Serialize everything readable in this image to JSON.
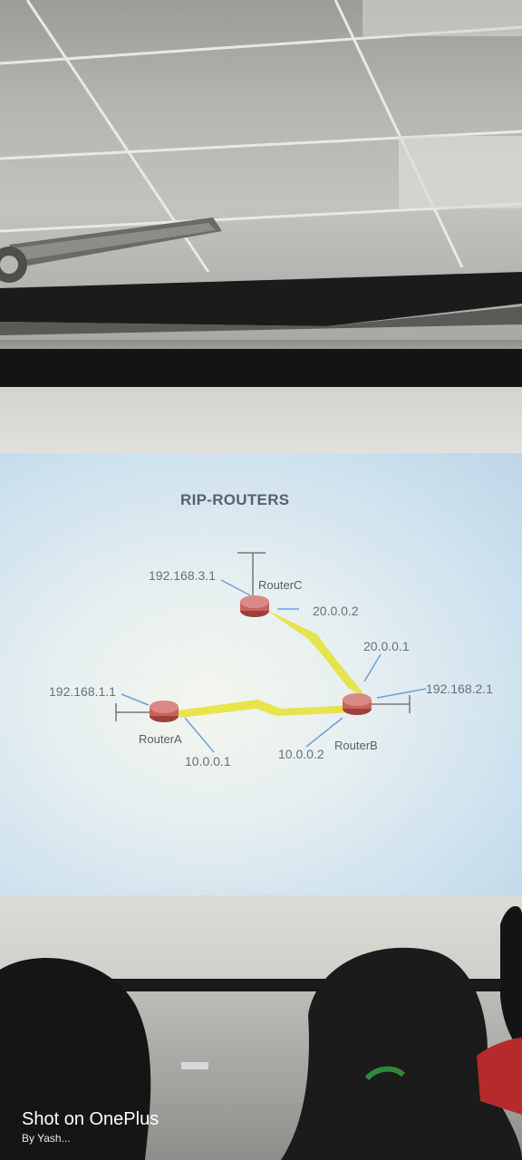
{
  "slide": {
    "title": "RIP-ROUTERS",
    "routers": {
      "router_a": "RouterA",
      "router_b": "RouterB",
      "router_c": "RouterC"
    },
    "ips": {
      "a_lan": "192.168.1.1",
      "b_lan": "192.168.2.1",
      "c_lan": "192.168.3.1",
      "c_serial": "20.0.0.2",
      "b_serial_c": "20.0.0.1",
      "a_serial": "10.0.0.1",
      "b_serial_a": "10.0.0.2"
    }
  },
  "watermark": {
    "line1": "Shot on OnePlus",
    "line2": "By Yash..."
  },
  "colors": {
    "router": "#c9615d",
    "link": "#e6e23a",
    "arrow": "#6fa0d8"
  }
}
